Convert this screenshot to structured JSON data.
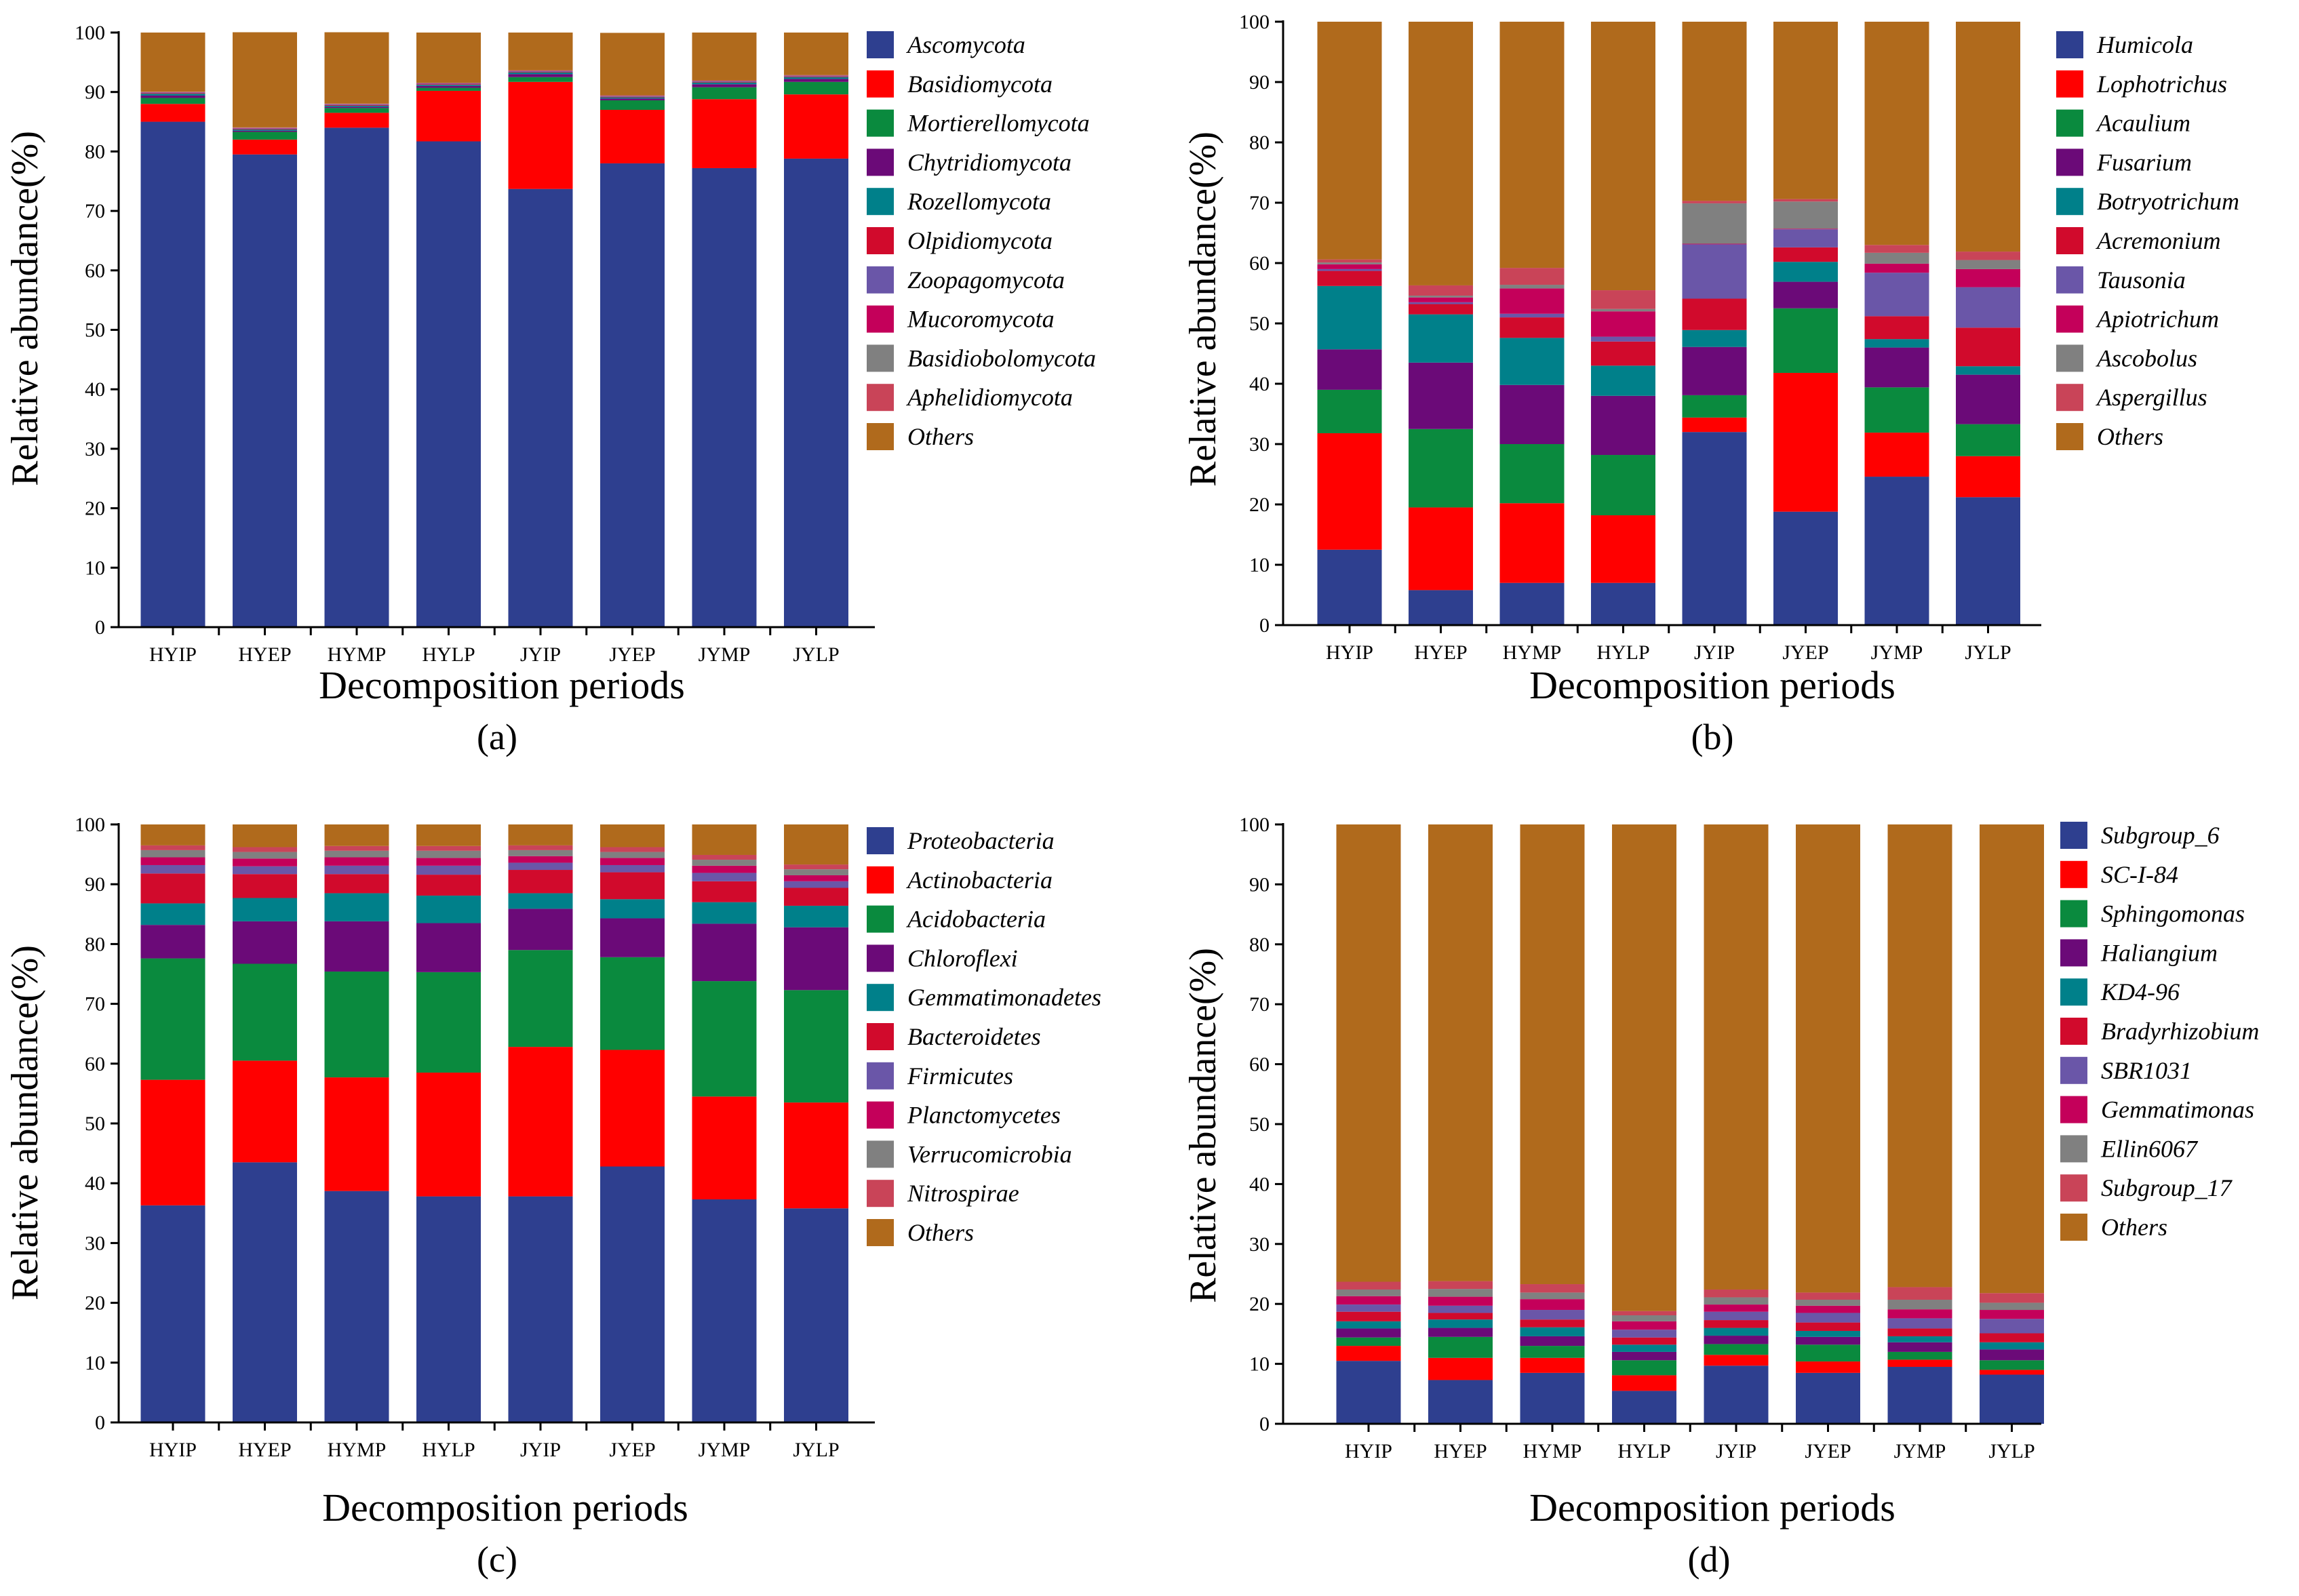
{
  "chart_data": [
    {
      "type": "bar",
      "stacked": true,
      "panel_label": "(a)",
      "xlabel": "Decomposition periods",
      "ylabel": "Relative abundance(%)",
      "ylim": [
        0,
        100
      ],
      "yticks": [
        "0",
        "10",
        "20",
        "30",
        "40",
        "50",
        "60",
        "70",
        "80",
        "90",
        "100"
      ],
      "categories": [
        "HYIP",
        "HYEP",
        "HYMP",
        "HYLP",
        "JYIP",
        "JYEP",
        "JYMP",
        "JYLP"
      ],
      "series": [
        {
          "name": "Ascomycota",
          "color": "#2e3f8f",
          "values": [
            85,
            79.5,
            84,
            81.7,
            73.7,
            78,
            77.2,
            78.8
          ]
        },
        {
          "name": "Basidiomycota",
          "color": "#ff0000",
          "values": [
            3,
            2.5,
            2.5,
            8.5,
            18,
            9,
            11.6,
            10.8
          ]
        },
        {
          "name": "Mortierellomycota",
          "color": "#0a8a3e",
          "values": [
            1,
            1.3,
            0.8,
            0.5,
            0.8,
            1.6,
            2,
            2.1
          ]
        },
        {
          "name": "Chytridiomycota",
          "color": "#6b0a78",
          "values": [
            0.4,
            0.2,
            0.2,
            0.3,
            0.5,
            0.3,
            0.5,
            0.5
          ]
        },
        {
          "name": "Rozellomycota",
          "color": "#00808a",
          "values": [
            0.3,
            0.2,
            0.2,
            0.2,
            0.3,
            0.2,
            0.3,
            0.3
          ]
        },
        {
          "name": "Olpidiomycota",
          "color": "#d10a2c",
          "values": [
            0.1,
            0.1,
            0.1,
            0.1,
            0.1,
            0.1,
            0.1,
            0.1
          ]
        },
        {
          "name": "Zoopagomycota",
          "color": "#6a56a8",
          "values": [
            0.1,
            0.1,
            0.1,
            0.1,
            0.1,
            0.1,
            0.1,
            0.1
          ]
        },
        {
          "name": "Mucoromycota",
          "color": "#c4005a",
          "values": [
            0.05,
            0.05,
            0.05,
            0.05,
            0.05,
            0.05,
            0.05,
            0.05
          ]
        },
        {
          "name": "Basidiobolomycota",
          "color": "#808080",
          "values": [
            0.05,
            0.05,
            0.05,
            0.05,
            0.05,
            0.05,
            0.05,
            0.05
          ]
        },
        {
          "name": "Aphelidiomycota",
          "color": "#c94458",
          "values": [
            0.05,
            0.05,
            0.05,
            0.05,
            0.05,
            0.05,
            0.05,
            0.05
          ]
        },
        {
          "name": "Others",
          "color": "#b06a1c",
          "values": [
            9.95,
            16,
            12,
            8.45,
            6.35,
            10.5,
            8.05,
            7.15
          ]
        }
      ]
    },
    {
      "type": "bar",
      "stacked": true,
      "panel_label": "(b)",
      "xlabel": "Decomposition periods",
      "ylabel": "Relative abundance(%)",
      "ylim": [
        0,
        100
      ],
      "yticks": [
        "0",
        "10",
        "20",
        "30",
        "40",
        "50",
        "60",
        "70",
        "80",
        "90",
        "100"
      ],
      "categories": [
        "HYIP",
        "HYEP",
        "HYMP",
        "HYLP",
        "JYIP",
        "JYEP",
        "JYMP",
        "JYLP"
      ],
      "series": [
        {
          "name": "Humicola",
          "color": "#2e3f8f",
          "values": [
            12.5,
            5.8,
            7,
            7,
            32,
            18.8,
            24.6,
            21.2
          ]
        },
        {
          "name": "Lophotrichus",
          "color": "#ff0000",
          "values": [
            19.3,
            13.7,
            13.2,
            11.2,
            2.4,
            23,
            7.3,
            6.8
          ]
        },
        {
          "name": "Acaulium",
          "color": "#0a8a3e",
          "values": [
            7.2,
            13,
            9.8,
            10,
            3.7,
            10.7,
            7.5,
            5.3
          ]
        },
        {
          "name": "Fusarium",
          "color": "#6b0a78",
          "values": [
            6.7,
            11,
            9.8,
            9.8,
            8,
            4.4,
            6.6,
            8.2
          ]
        },
        {
          "name": "Botryotrichum",
          "color": "#00808a",
          "values": [
            10.5,
            8,
            7.8,
            5,
            2.8,
            3.3,
            1.4,
            1.4
          ]
        },
        {
          "name": "Acremonium",
          "color": "#d10a2c",
          "values": [
            2.5,
            1.7,
            3.4,
            4,
            5.2,
            2.4,
            3.8,
            6.4
          ]
        },
        {
          "name": "Tausonia",
          "color": "#6a56a8",
          "values": [
            0.3,
            0.3,
            0.6,
            0.8,
            9,
            3,
            7.2,
            6.7
          ]
        },
        {
          "name": "Apiotrichum",
          "color": "#c4005a",
          "values": [
            0.8,
            0.8,
            4.2,
            4.2,
            0.1,
            0.1,
            1.5,
            3
          ]
        },
        {
          "name": "Ascobolus",
          "color": "#808080",
          "values": [
            0.3,
            0.3,
            0.6,
            0.4,
            6.7,
            4.5,
            1.8,
            1.5
          ]
        },
        {
          "name": "Aspergillus",
          "color": "#c94458",
          "values": [
            0.5,
            1.7,
            2.8,
            3.1,
            0.4,
            0.4,
            1.3,
            1.4
          ]
        },
        {
          "name": "Others",
          "color": "#b06a1c",
          "values": [
            39.4,
            43.7,
            40.8,
            44.5,
            29.7,
            29.4,
            37,
            38.1
          ]
        }
      ]
    },
    {
      "type": "bar",
      "stacked": true,
      "panel_label": "(c)",
      "xlabel": "Decomposition periods",
      "ylabel": "Relative abundance(%)",
      "ylim": [
        0,
        100
      ],
      "yticks": [
        "0",
        "10",
        "20",
        "30",
        "40",
        "50",
        "60",
        "70",
        "80",
        "90",
        "100"
      ],
      "categories": [
        "HYIP",
        "HYEP",
        "HYMP",
        "HYLP",
        "JYIP",
        "JYEP",
        "JYMP",
        "JYLP"
      ],
      "series": [
        {
          "name": "Proteobacteria",
          "color": "#2e3f8f",
          "values": [
            36.3,
            43.5,
            38.7,
            37.8,
            37.8,
            42.8,
            37.3,
            35.8
          ]
        },
        {
          "name": "Actinobacteria",
          "color": "#ff0000",
          "values": [
            21,
            17,
            19,
            20.7,
            25,
            19.5,
            17.2,
            17.7
          ]
        },
        {
          "name": "Acidobacteria",
          "color": "#0a8a3e",
          "values": [
            20.3,
            16.2,
            17.7,
            16.8,
            16.2,
            15.5,
            19.3,
            18.8
          ]
        },
        {
          "name": "Chloroflexi",
          "color": "#6b0a78",
          "values": [
            5.6,
            7.1,
            8.4,
            8.2,
            6.9,
            6.5,
            9.6,
            10.5
          ]
        },
        {
          "name": "Gemmatimonadetes",
          "color": "#00808a",
          "values": [
            3.6,
            3.9,
            4.7,
            4.6,
            2.6,
            3.2,
            3.6,
            3.6
          ]
        },
        {
          "name": "Bacteroidetes",
          "color": "#d10a2c",
          "values": [
            5,
            4,
            3.2,
            3.5,
            3.9,
            4.5,
            3.5,
            3
          ]
        },
        {
          "name": "Firmicutes",
          "color": "#6a56a8",
          "values": [
            1.4,
            1.3,
            1.4,
            1.5,
            1.2,
            1.2,
            1.4,
            1.1
          ]
        },
        {
          "name": "Planctomycetes",
          "color": "#c4005a",
          "values": [
            1.3,
            1.3,
            1.4,
            1.3,
            1.1,
            1.2,
            1.2,
            1
          ]
        },
        {
          "name": "Verrucomicrobia",
          "color": "#808080",
          "values": [
            1.2,
            1.1,
            1.1,
            1.2,
            1,
            1,
            1,
            1
          ]
        },
        {
          "name": "Nitrospirae",
          "color": "#c94458",
          "values": [
            0.8,
            0.8,
            0.8,
            0.8,
            0.8,
            0.8,
            0.8,
            0.8
          ]
        },
        {
          "name": "Others",
          "color": "#b06a1c",
          "values": [
            3.5,
            3.8,
            3.6,
            3.6,
            3.5,
            3.8,
            5.1,
            6.7
          ]
        }
      ]
    },
    {
      "type": "bar",
      "stacked": true,
      "panel_label": "(d)",
      "xlabel": "Decomposition periods",
      "ylabel": "Relative abundance(%)",
      "ylim": [
        0,
        100
      ],
      "yticks": [
        "0",
        "10",
        "20",
        "30",
        "40",
        "50",
        "60",
        "70",
        "80",
        "90",
        "100"
      ],
      "categories": [
        "HYIP",
        "HYEP",
        "HYMP",
        "HYLP",
        "JYIP",
        "JYEP",
        "JYMP",
        "JYLP"
      ],
      "series": [
        {
          "name": "Subgroup_6",
          "color": "#2e3f8f",
          "values": [
            10.5,
            7.3,
            8.5,
            5.5,
            9.7,
            8.5,
            9.5,
            8.2
          ]
        },
        {
          "name": "SC-I-84",
          "color": "#ff0000",
          "values": [
            2.5,
            3.7,
            2.5,
            2.6,
            1.8,
            1.9,
            1.2,
            0.8
          ]
        },
        {
          "name": "Sphingomonas",
          "color": "#0a8a3e",
          "values": [
            1.4,
            3.5,
            2,
            2.5,
            1.8,
            2.8,
            1.3,
            1.6
          ]
        },
        {
          "name": "Haliangium",
          "color": "#6b0a78",
          "values": [
            1.5,
            1.5,
            1.6,
            1.4,
            1.4,
            1.3,
            1.6,
            1.8
          ]
        },
        {
          "name": "KD4-96",
          "color": "#00808a",
          "values": [
            1.2,
            1.4,
            1.5,
            1.2,
            1.3,
            1,
            1,
            1.2
          ]
        },
        {
          "name": "Bradyrhizobium",
          "color": "#d10a2c",
          "values": [
            1.6,
            1.1,
            1.3,
            1.2,
            1.3,
            1.4,
            1.3,
            1.5
          ]
        },
        {
          "name": "SBR1031",
          "color": "#6a56a8",
          "values": [
            1.2,
            1.2,
            1.6,
            1.3,
            1.4,
            1.6,
            1.7,
            2.4
          ]
        },
        {
          "name": "Gemmatimonas",
          "color": "#c4005a",
          "values": [
            1.4,
            1.5,
            1.8,
            1.4,
            1.2,
            1.2,
            1.5,
            1.5
          ]
        },
        {
          "name": "Ellin6067",
          "color": "#808080",
          "values": [
            1.1,
            1.3,
            1.1,
            1,
            1.2,
            1,
            1.6,
            1.2
          ]
        },
        {
          "name": "Subgroup_17",
          "color": "#c94458",
          "values": [
            1.3,
            1.3,
            1.4,
            0.7,
            1.3,
            1.2,
            2.1,
            1.6
          ]
        },
        {
          "name": "Others",
          "color": "#b06a1c",
          "values": [
            76.3,
            76.2,
            76.7,
            81.2,
            77.6,
            78.1,
            77.2,
            78.2
          ]
        }
      ]
    }
  ]
}
